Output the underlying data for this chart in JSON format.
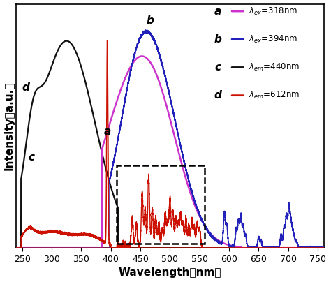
{
  "xlabel": "Wavelength（nm）",
  "ylabel": "Intensity（a.u.）",
  "xlim": [
    240,
    760
  ],
  "ylim": [
    0,
    1.12
  ],
  "xticks": [
    250,
    300,
    350,
    400,
    450,
    500,
    550,
    600,
    650,
    700,
    750
  ],
  "background_color": "#ffffff",
  "curve_a_color": "#cc33cc",
  "curve_b_color": "#2222bb",
  "curve_c_color": "#111111",
  "curve_d_color": "#cc1100",
  "legend_entries": [
    {
      "label": "a",
      "color": "#cc33cc",
      "tex": "$\\lambda_{ex}$=318nm"
    },
    {
      "label": "b",
      "color": "#2222bb",
      "tex": "$\\lambda_{ex}$=394nm"
    },
    {
      "label": "c",
      "color": "#111111",
      "tex": "$\\lambda_{em}$=440nm"
    },
    {
      "label": "d",
      "color": "#cc1100",
      "tex": "$\\lambda_{em}$=612nm"
    }
  ]
}
